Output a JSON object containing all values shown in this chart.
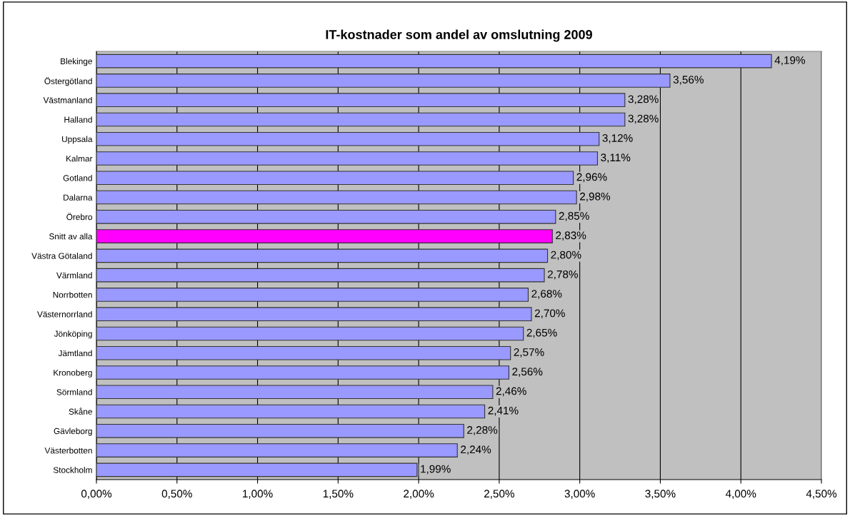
{
  "chart_data": {
    "type": "bar",
    "orientation": "horizontal",
    "title": "IT-kostnader som andel av omslutning 2009",
    "categories": [
      "Blekinge",
      "Östergötland",
      "Västmanland",
      "Halland",
      "Uppsala",
      "Kalmar",
      "Gotland",
      "Dalarna",
      "Örebro",
      "Snitt av alla",
      "Västra Götaland",
      "Värmland",
      "Norrbotten",
      "Västernorrland",
      "Jönköping",
      "Jämtland",
      "Kronoberg",
      "Sörmland",
      "Skåne",
      "Gävleborg",
      "Västerbotten",
      "Stockholm"
    ],
    "values": [
      4.19,
      3.56,
      3.28,
      3.28,
      3.12,
      3.11,
      2.96,
      2.98,
      2.85,
      2.83,
      2.8,
      2.78,
      2.68,
      2.7,
      2.65,
      2.57,
      2.56,
      2.46,
      2.41,
      2.28,
      2.24,
      1.99
    ],
    "value_labels": [
      "4,19%",
      "3,56%",
      "3,28%",
      "3,28%",
      "3,12%",
      "3,11%",
      "2,96%",
      "2,98%",
      "2,85%",
      "2,83%",
      "2,80%",
      "2,78%",
      "2,68%",
      "2,70%",
      "2,65%",
      "2,57%",
      "2,56%",
      "2,46%",
      "2,41%",
      "2,28%",
      "2,24%",
      "1,99%"
    ],
    "colors": [
      "#9999ff",
      "#9999ff",
      "#9999ff",
      "#9999ff",
      "#9999ff",
      "#9999ff",
      "#9999ff",
      "#9999ff",
      "#9999ff",
      "#ff00ff",
      "#9999ff",
      "#9999ff",
      "#9999ff",
      "#9999ff",
      "#9999ff",
      "#9999ff",
      "#9999ff",
      "#9999ff",
      "#9999ff",
      "#9999ff",
      "#9999ff",
      "#9999ff"
    ],
    "xlim": [
      0,
      4.5
    ],
    "xticks": [
      {
        "value": 0,
        "label": "0,00%"
      },
      {
        "value": 0.5,
        "label": "0,50%"
      },
      {
        "value": 1,
        "label": "1,00%"
      },
      {
        "value": 1.5,
        "label": "1,50%"
      },
      {
        "value": 2,
        "label": "2,00%"
      },
      {
        "value": 2.5,
        "label": "2,50%"
      },
      {
        "value": 3,
        "label": "3,00%"
      },
      {
        "value": 3.5,
        "label": "3,50%"
      },
      {
        "value": 4,
        "label": "4,00%"
      },
      {
        "value": 4.5,
        "label": "4,50%"
      }
    ],
    "grid": "x"
  }
}
